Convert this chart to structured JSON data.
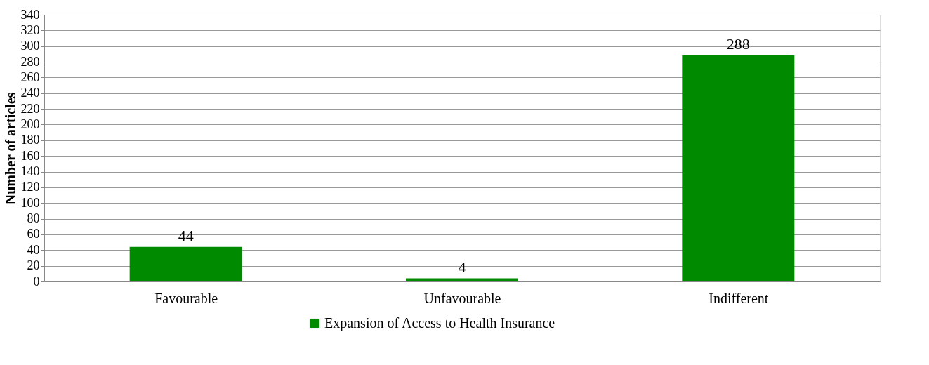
{
  "chart_data": {
    "type": "bar",
    "ylabel": "Number of articles",
    "categories": [
      "Favourable",
      "Unfavourable",
      "Indifferent"
    ],
    "series": [
      {
        "name": "Expansion of Access to Health Insurance",
        "color": "#008a00",
        "values": [
          44,
          4,
          288
        ]
      }
    ],
    "ylim": [
      0,
      340
    ],
    "yticks": [
      0,
      20,
      40,
      60,
      80,
      100,
      120,
      140,
      160,
      180,
      200,
      220,
      240,
      260,
      280,
      300,
      320,
      340
    ],
    "grid": "y",
    "legend": "bottom",
    "data_labels": true
  }
}
